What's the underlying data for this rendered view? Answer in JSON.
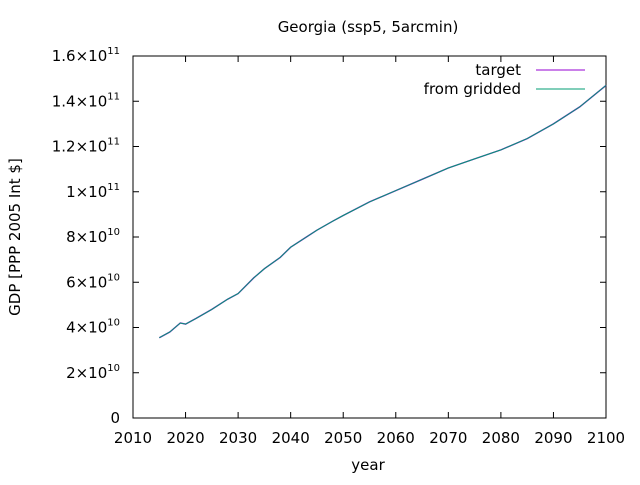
{
  "chart_data": {
    "type": "line",
    "title": "Georgia (ssp5, 5arcmin)",
    "xlabel": "year",
    "ylabel": "GDP [PPP 2005 Int $]",
    "xlim": [
      2010,
      2100
    ],
    "ylim": [
      0,
      160000000000
    ],
    "x_ticks": [
      2010,
      2020,
      2030,
      2040,
      2050,
      2060,
      2070,
      2080,
      2090,
      2100
    ],
    "x_tick_labels": [
      "2010",
      "2020",
      "2030",
      "2040",
      "2050",
      "2060",
      "2070",
      "2080",
      "2090",
      "2100"
    ],
    "y_ticks": [
      0,
      20000000000,
      40000000000,
      60000000000,
      80000000000,
      100000000000,
      120000000000,
      140000000000,
      160000000000
    ],
    "y_tick_labels": [
      {
        "mantissa": "0",
        "exp": ""
      },
      {
        "mantissa": "2×10",
        "exp": "10"
      },
      {
        "mantissa": "4×10",
        "exp": "10"
      },
      {
        "mantissa": "6×10",
        "exp": "10"
      },
      {
        "mantissa": "8×10",
        "exp": "10"
      },
      {
        "mantissa": "1×10",
        "exp": "11"
      },
      {
        "mantissa": "1.2×10",
        "exp": "11"
      },
      {
        "mantissa": "1.4×10",
        "exp": "11"
      },
      {
        "mantissa": "1.6×10",
        "exp": "11"
      }
    ],
    "legend_position": "top-right",
    "grid": false,
    "series": [
      {
        "name": "target",
        "color": "#9400d3",
        "x": [
          2015,
          2017,
          2019,
          2020,
          2022,
          2025,
          2028,
          2030,
          2033,
          2035,
          2038,
          2040,
          2043,
          2045,
          2048,
          2050,
          2055,
          2060,
          2065,
          2070,
          2075,
          2080,
          2085,
          2090,
          2095,
          2100
        ],
        "y": [
          35500000000,
          38000000000,
          42000000000,
          41500000000,
          44000000000,
          48000000000,
          52500000000,
          55000000000,
          62000000000,
          66000000000,
          71000000000,
          75500000000,
          80000000000,
          83000000000,
          87000000000,
          89500000000,
          95500000000,
          100500000000,
          105500000000,
          110500000000,
          114500000000,
          118500000000,
          123500000000,
          130000000000,
          137500000000,
          147000000000
        ]
      },
      {
        "name": "from gridded",
        "color": "#009e73",
        "x": [
          2015,
          2017,
          2019,
          2020,
          2022,
          2025,
          2028,
          2030,
          2033,
          2035,
          2038,
          2040,
          2043,
          2045,
          2048,
          2050,
          2055,
          2060,
          2065,
          2070,
          2075,
          2080,
          2085,
          2090,
          2095,
          2100
        ],
        "y": [
          35500000000,
          38000000000,
          42000000000,
          41500000000,
          44000000000,
          48000000000,
          52500000000,
          55000000000,
          62000000000,
          66000000000,
          71000000000,
          75500000000,
          80000000000,
          83000000000,
          87000000000,
          89500000000,
          95500000000,
          100500000000,
          105500000000,
          110500000000,
          114500000000,
          118500000000,
          123500000000,
          130000000000,
          137500000000,
          147000000000
        ]
      }
    ]
  }
}
